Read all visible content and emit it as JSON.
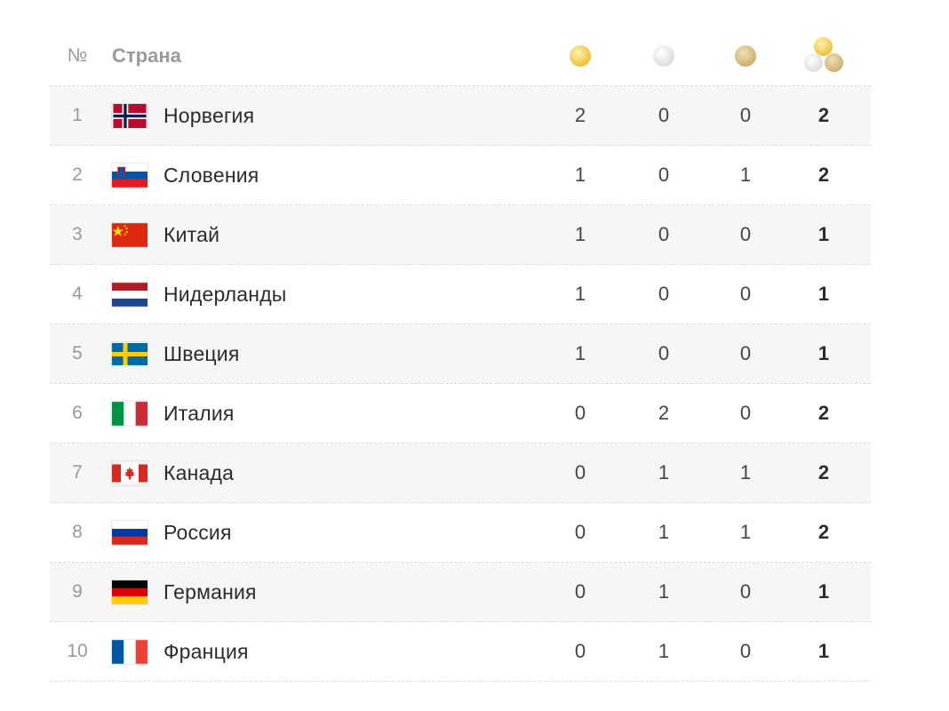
{
  "header": {
    "num_label": "№",
    "country_label": "Страна",
    "gold_icon": "gold-medal-icon",
    "silver_icon": "silver-medal-icon",
    "bronze_icon": "bronze-medal-icon",
    "total_icon": "all-medals-icon"
  },
  "colors": {
    "gold": "#f0c94a",
    "silver": "#e2e2e2",
    "bronze": "#d2b77a",
    "row_shade": "#f6f6f6"
  },
  "rows": [
    {
      "rank": "1",
      "country": "Норвегия",
      "flag": "norway-flag-icon",
      "gold": "2",
      "silver": "0",
      "bronze": "0",
      "total": "2"
    },
    {
      "rank": "2",
      "country": "Словения",
      "flag": "slovenia-flag-icon",
      "gold": "1",
      "silver": "0",
      "bronze": "1",
      "total": "2"
    },
    {
      "rank": "3",
      "country": "Китай",
      "flag": "china-flag-icon",
      "gold": "1",
      "silver": "0",
      "bronze": "0",
      "total": "1"
    },
    {
      "rank": "4",
      "country": "Нидерланды",
      "flag": "netherlands-flag-icon",
      "gold": "1",
      "silver": "0",
      "bronze": "0",
      "total": "1"
    },
    {
      "rank": "5",
      "country": "Швеция",
      "flag": "sweden-flag-icon",
      "gold": "1",
      "silver": "0",
      "bronze": "0",
      "total": "1"
    },
    {
      "rank": "6",
      "country": "Италия",
      "flag": "italy-flag-icon",
      "gold": "0",
      "silver": "2",
      "bronze": "0",
      "total": "2"
    },
    {
      "rank": "7",
      "country": "Канада",
      "flag": "canada-flag-icon",
      "gold": "0",
      "silver": "1",
      "bronze": "1",
      "total": "2"
    },
    {
      "rank": "8",
      "country": "Россия",
      "flag": "russia-flag-icon",
      "gold": "0",
      "silver": "1",
      "bronze": "1",
      "total": "2"
    },
    {
      "rank": "9",
      "country": "Германия",
      "flag": "germany-flag-icon",
      "gold": "0",
      "silver": "1",
      "bronze": "0",
      "total": "1"
    },
    {
      "rank": "10",
      "country": "Франция",
      "flag": "france-flag-icon",
      "gold": "0",
      "silver": "1",
      "bronze": "0",
      "total": "1"
    }
  ]
}
